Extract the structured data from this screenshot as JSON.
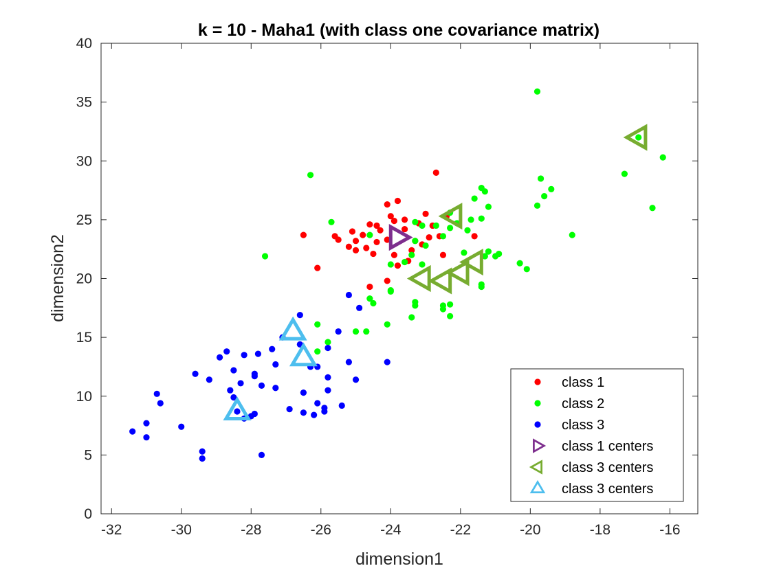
{
  "chart_data": {
    "type": "scatter",
    "title": "k = 10 - Maha1 (with class one covariance matrix)",
    "xlabel": "dimension1",
    "ylabel": "dimension2",
    "xlim": [
      -32.3,
      -15.2
    ],
    "ylim": [
      0,
      40
    ],
    "xticks": [
      -32,
      -30,
      -28,
      -26,
      -24,
      -22,
      -20,
      -18,
      -16
    ],
    "yticks": [
      0,
      5,
      10,
      15,
      20,
      25,
      30,
      35,
      40
    ],
    "grid": false,
    "legend_position": "bottom-right",
    "series": [
      {
        "name": "class 1",
        "marker": "dot",
        "color": "#ff0000",
        "points": [
          [
            -22.7,
            29.0
          ],
          [
            -24.1,
            26.3
          ],
          [
            -23.8,
            26.6
          ],
          [
            -23.0,
            25.5
          ],
          [
            -24.0,
            25.3
          ],
          [
            -23.6,
            25.0
          ],
          [
            -24.6,
            24.6
          ],
          [
            -24.4,
            24.5
          ],
          [
            -23.9,
            24.9
          ],
          [
            -23.2,
            24.7
          ],
          [
            -22.8,
            24.5
          ],
          [
            -22.4,
            25.3
          ],
          [
            -25.1,
            24.0
          ],
          [
            -24.8,
            23.7
          ],
          [
            -24.3,
            24.1
          ],
          [
            -23.6,
            24.2
          ],
          [
            -22.6,
            23.6
          ],
          [
            -23.3,
            23.2
          ],
          [
            -24.1,
            23.3
          ],
          [
            -24.4,
            23.1
          ],
          [
            -25.0,
            23.2
          ],
          [
            -25.2,
            22.7
          ],
          [
            -25.5,
            23.3
          ],
          [
            -25.6,
            23.6
          ],
          [
            -26.5,
            23.7
          ],
          [
            -25.0,
            22.4
          ],
          [
            -24.7,
            22.6
          ],
          [
            -24.5,
            22.1
          ],
          [
            -23.9,
            22.0
          ],
          [
            -23.4,
            22.4
          ],
          [
            -23.1,
            22.9
          ],
          [
            -22.9,
            23.5
          ],
          [
            -21.6,
            23.6
          ],
          [
            -23.5,
            21.5
          ],
          [
            -23.8,
            21.1
          ],
          [
            -24.1,
            19.8
          ],
          [
            -24.6,
            19.3
          ],
          [
            -26.1,
            20.9
          ],
          [
            -22.5,
            22.0
          ]
        ]
      },
      {
        "name": "class 2",
        "marker": "dot",
        "color": "#00ff00",
        "points": [
          [
            -19.8,
            35.9
          ],
          [
            -16.9,
            32.0
          ],
          [
            -16.2,
            30.3
          ],
          [
            -17.3,
            28.9
          ],
          [
            -26.3,
            28.8
          ],
          [
            -19.7,
            28.5
          ],
          [
            -19.4,
            27.6
          ],
          [
            -21.4,
            27.7
          ],
          [
            -21.3,
            27.4
          ],
          [
            -19.6,
            27.0
          ],
          [
            -21.6,
            26.8
          ],
          [
            -19.8,
            26.2
          ],
          [
            -16.5,
            26.0
          ],
          [
            -21.2,
            26.1
          ],
          [
            -22.3,
            25.6
          ],
          [
            -21.4,
            25.1
          ],
          [
            -21.7,
            25.0
          ],
          [
            -22.1,
            24.7
          ],
          [
            -22.3,
            24.3
          ],
          [
            -22.7,
            24.5
          ],
          [
            -23.1,
            24.5
          ],
          [
            -23.3,
            24.8
          ],
          [
            -25.7,
            24.8
          ],
          [
            -21.8,
            24.1
          ],
          [
            -22.5,
            23.6
          ],
          [
            -23.3,
            23.2
          ],
          [
            -23.0,
            22.8
          ],
          [
            -24.6,
            23.7
          ],
          [
            -18.8,
            23.7
          ],
          [
            -21.9,
            22.2
          ],
          [
            -21.2,
            22.3
          ],
          [
            -21.0,
            21.9
          ],
          [
            -20.9,
            22.1
          ],
          [
            -21.3,
            21.9
          ],
          [
            -23.4,
            22.0
          ],
          [
            -23.6,
            21.4
          ],
          [
            -23.1,
            21.2
          ],
          [
            -24.0,
            21.2
          ],
          [
            -27.6,
            21.9
          ],
          [
            -20.3,
            21.3
          ],
          [
            -20.1,
            20.8
          ],
          [
            -21.4,
            19.5
          ],
          [
            -21.4,
            19.3
          ],
          [
            -24.0,
            19.0
          ],
          [
            -24.0,
            18.9
          ],
          [
            -24.6,
            18.3
          ],
          [
            -24.5,
            17.9
          ],
          [
            -23.3,
            18.0
          ],
          [
            -23.3,
            17.7
          ],
          [
            -22.5,
            17.7
          ],
          [
            -22.5,
            17.4
          ],
          [
            -22.3,
            17.8
          ],
          [
            -23.4,
            16.7
          ],
          [
            -22.3,
            16.8
          ],
          [
            -24.1,
            16.1
          ],
          [
            -26.1,
            16.1
          ],
          [
            -25.0,
            15.5
          ],
          [
            -24.7,
            15.5
          ],
          [
            -25.8,
            14.6
          ],
          [
            -26.1,
            13.8
          ]
        ]
      },
      {
        "name": "class 3",
        "marker": "dot",
        "color": "#0000ff",
        "points": [
          [
            -26.6,
            16.9
          ],
          [
            -25.2,
            18.6
          ],
          [
            -24.9,
            17.5
          ],
          [
            -25.5,
            15.5
          ],
          [
            -27.1,
            15.0
          ],
          [
            -26.6,
            14.4
          ],
          [
            -25.8,
            14.1
          ],
          [
            -27.4,
            14.0
          ],
          [
            -28.7,
            13.8
          ],
          [
            -28.2,
            13.5
          ],
          [
            -27.8,
            13.6
          ],
          [
            -28.9,
            13.3
          ],
          [
            -27.3,
            12.7
          ],
          [
            -25.2,
            12.9
          ],
          [
            -24.1,
            12.9
          ],
          [
            -26.1,
            12.5
          ],
          [
            -26.3,
            12.5
          ],
          [
            -28.5,
            12.2
          ],
          [
            -29.6,
            11.9
          ],
          [
            -27.9,
            11.9
          ],
          [
            -27.9,
            11.7
          ],
          [
            -29.2,
            11.4
          ],
          [
            -25.8,
            11.6
          ],
          [
            -25.0,
            11.4
          ],
          [
            -28.3,
            11.1
          ],
          [
            -27.7,
            10.9
          ],
          [
            -27.3,
            10.7
          ],
          [
            -28.6,
            10.5
          ],
          [
            -26.5,
            10.3
          ],
          [
            -30.7,
            10.2
          ],
          [
            -25.8,
            10.5
          ],
          [
            -28.5,
            9.9
          ],
          [
            -30.6,
            9.4
          ],
          [
            -26.1,
            9.4
          ],
          [
            -25.9,
            9.0
          ],
          [
            -25.4,
            9.2
          ],
          [
            -31.0,
            7.7
          ],
          [
            -28.0,
            8.3
          ],
          [
            -27.9,
            8.5
          ],
          [
            -26.9,
            8.9
          ],
          [
            -26.5,
            8.6
          ],
          [
            -26.2,
            8.4
          ],
          [
            -25.9,
            8.7
          ],
          [
            -28.2,
            8.1
          ],
          [
            -28.4,
            8.7
          ],
          [
            -30.0,
            7.4
          ],
          [
            -31.4,
            7.0
          ],
          [
            -31.0,
            6.5
          ],
          [
            -29.4,
            5.3
          ],
          [
            -27.7,
            5.0
          ],
          [
            -29.4,
            4.7
          ]
        ]
      },
      {
        "name": "class 1 centers",
        "marker": "triangle-right",
        "color": "#7e2f8e",
        "points": [
          [
            -23.8,
            23.5
          ]
        ]
      },
      {
        "name": "class 3 centers",
        "marker": "triangle-left",
        "color": "#77ac30",
        "points": [
          [
            -16.9,
            32.0
          ],
          [
            -22.2,
            25.3
          ],
          [
            -23.1,
            20.0
          ],
          [
            -22.5,
            19.8
          ],
          [
            -22.0,
            20.5
          ],
          [
            -21.6,
            21.4
          ]
        ]
      },
      {
        "name": "class 3 centers",
        "marker": "triangle-up",
        "color": "#4dbeee",
        "points": [
          [
            -26.8,
            15.5
          ],
          [
            -26.5,
            13.3
          ],
          [
            -28.4,
            8.7
          ]
        ]
      }
    ]
  }
}
